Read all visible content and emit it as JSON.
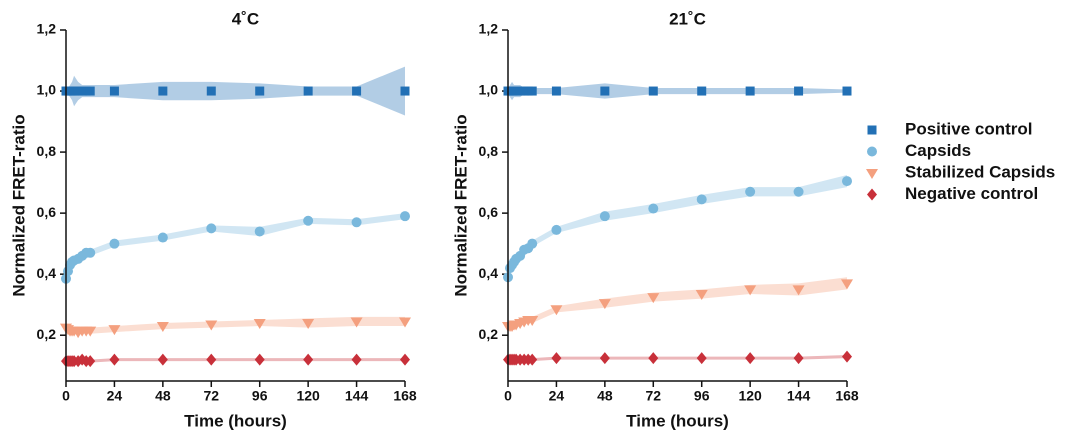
{
  "chart_data": [
    {
      "type": "line",
      "title": "4˚C",
      "x_label": "Time (hours)",
      "y_label": "Normalized FRET-ratio",
      "x": [
        0,
        1,
        2,
        3,
        4,
        6,
        8,
        10,
        12,
        24,
        48,
        72,
        96,
        120,
        144,
        168
      ],
      "xlim": [
        0,
        168
      ],
      "xticks": [
        0,
        24,
        48,
        72,
        96,
        120,
        144,
        168
      ],
      "ylim": [
        0.05,
        1.2
      ],
      "yticks": [
        {
          "value": 0.2,
          "label": "0,2"
        },
        {
          "value": 0.4,
          "label": "0,4"
        },
        {
          "value": 0.6,
          "label": "0,6"
        },
        {
          "value": 0.8,
          "label": "0,8"
        },
        {
          "value": 1.0,
          "label": "1,0"
        },
        {
          "value": 1.2,
          "label": "1,2"
        }
      ],
      "series": [
        {
          "name": "Positive control",
          "color": "#2270b5",
          "marker": "square",
          "values": [
            1,
            1,
            1,
            1,
            1,
            1,
            1,
            1,
            1,
            1,
            1,
            1,
            1,
            1,
            1,
            1
          ],
          "errors": [
            0.01,
            0.01,
            0.02,
            0.03,
            0.05,
            0.03,
            0.02,
            0.02,
            0.02,
            0.02,
            0.03,
            0.03,
            0.025,
            0.015,
            0.015,
            0.08
          ]
        },
        {
          "name": "Capsids",
          "color": "#7ab8dc",
          "marker": "circle",
          "values": [
            0.385,
            0.41,
            0.43,
            0.44,
            0.445,
            0.45,
            0.46,
            0.47,
            0.47,
            0.5,
            0.52,
            0.55,
            0.54,
            0.575,
            0.57,
            0.59
          ],
          "errors": [
            0.01,
            0.01,
            0.01,
            0.01,
            0.01,
            0.01,
            0.01,
            0.01,
            0.01,
            0.01,
            0.01,
            0.01,
            0.015,
            0.01,
            0.01,
            0.01
          ]
        },
        {
          "name": "Stabilized Capsids",
          "color": "#f4a07f",
          "marker": "triangle-down",
          "values": [
            0.225,
            0.22,
            0.215,
            0.215,
            0.215,
            0.21,
            0.215,
            0.215,
            0.215,
            0.22,
            0.23,
            0.235,
            0.24,
            0.24,
            0.245,
            0.245
          ],
          "errors": [
            0.01,
            0.01,
            0.01,
            0.01,
            0.01,
            0.01,
            0.01,
            0.01,
            0.01,
            0.01,
            0.01,
            0.01,
            0.01,
            0.015,
            0.015,
            0.015
          ]
        },
        {
          "name": "Negative control",
          "color": "#c8303a",
          "marker": "diamond",
          "values": [
            0.115,
            0.115,
            0.115,
            0.115,
            0.115,
            0.115,
            0.12,
            0.115,
            0.115,
            0.12,
            0.12,
            0.12,
            0.12,
            0.12,
            0.12,
            0.12
          ],
          "errors": [
            0.005,
            0.005,
            0.005,
            0.005,
            0.005,
            0.005,
            0.005,
            0.005,
            0.005,
            0.005,
            0.005,
            0.005,
            0.005,
            0.005,
            0.005,
            0.005
          ]
        }
      ]
    },
    {
      "type": "line",
      "title": "21˚C",
      "x_label": "Time (hours)",
      "y_label": "Normalized FRET-ratio",
      "x": [
        0,
        1,
        2,
        3,
        4,
        6,
        8,
        10,
        12,
        24,
        48,
        72,
        96,
        120,
        144,
        168
      ],
      "xlim": [
        0,
        168
      ],
      "xticks": [
        0,
        24,
        48,
        72,
        96,
        120,
        144,
        168
      ],
      "ylim": [
        0.05,
        1.2
      ],
      "yticks": [
        {
          "value": 0.2,
          "label": "0,2"
        },
        {
          "value": 0.4,
          "label": "0,4"
        },
        {
          "value": 0.6,
          "label": "0,6"
        },
        {
          "value": 0.8,
          "label": "0,8"
        },
        {
          "value": 1.0,
          "label": "1,0"
        },
        {
          "value": 1.2,
          "label": "1,2"
        }
      ],
      "series": [
        {
          "name": "Positive control",
          "color": "#2270b5",
          "marker": "square",
          "values": [
            1,
            1,
            1,
            1,
            1,
            1,
            1,
            1,
            1,
            1,
            1,
            1,
            1,
            1,
            1,
            1
          ],
          "errors": [
            0.01,
            0.02,
            0.03,
            0.02,
            0.02,
            0.02,
            0.01,
            0.01,
            0.01,
            0.01,
            0.025,
            0.01,
            0.01,
            0.01,
            0.01,
            0.005
          ]
        },
        {
          "name": "Capsids",
          "color": "#7ab8dc",
          "marker": "circle",
          "values": [
            0.39,
            0.42,
            0.43,
            0.44,
            0.45,
            0.46,
            0.48,
            0.485,
            0.5,
            0.545,
            0.59,
            0.615,
            0.645,
            0.67,
            0.67,
            0.705
          ],
          "errors": [
            0.01,
            0.01,
            0.01,
            0.01,
            0.01,
            0.01,
            0.01,
            0.01,
            0.01,
            0.01,
            0.015,
            0.015,
            0.015,
            0.015,
            0.015,
            0.02
          ]
        },
        {
          "name": "Stabilized Capsids",
          "color": "#f4a07f",
          "marker": "triangle-down",
          "values": [
            0.23,
            0.23,
            0.23,
            0.235,
            0.235,
            0.24,
            0.245,
            0.25,
            0.25,
            0.285,
            0.305,
            0.325,
            0.335,
            0.35,
            0.35,
            0.37
          ],
          "errors": [
            0.01,
            0.01,
            0.01,
            0.01,
            0.01,
            0.01,
            0.01,
            0.01,
            0.01,
            0.01,
            0.015,
            0.015,
            0.015,
            0.015,
            0.02,
            0.02
          ]
        },
        {
          "name": "Negative control",
          "color": "#c8303a",
          "marker": "diamond",
          "values": [
            0.12,
            0.12,
            0.12,
            0.12,
            0.12,
            0.12,
            0.12,
            0.12,
            0.12,
            0.125,
            0.125,
            0.125,
            0.125,
            0.125,
            0.125,
            0.13
          ],
          "errors": [
            0.005,
            0.005,
            0.005,
            0.005,
            0.005,
            0.005,
            0.005,
            0.005,
            0.005,
            0.005,
            0.005,
            0.005,
            0.005,
            0.005,
            0.005,
            0.005
          ]
        }
      ]
    }
  ]
}
